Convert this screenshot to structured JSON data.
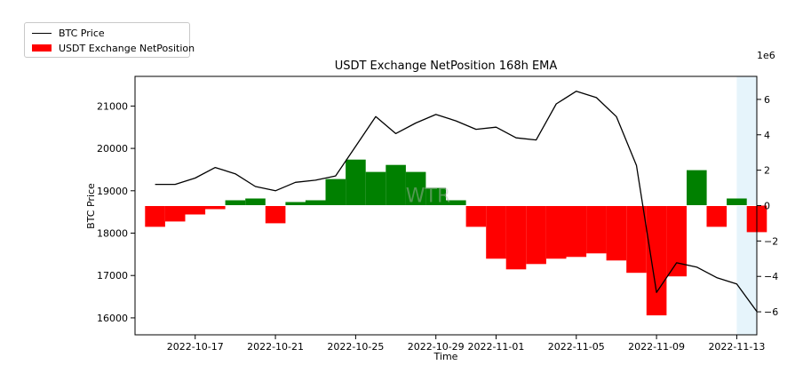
{
  "chart_data": {
    "type": "bar",
    "title": "USDT Exchange NetPosition 168h EMA",
    "xlabel": "Time",
    "ylabel": "BTC Price",
    "right_axis_multiplier": "1e6",
    "watermark": "WTR",
    "legend_placement": "top-left, outside plot",
    "grid": false,
    "x_ticks": [
      "2022-10-17",
      "2022-10-21",
      "2022-10-25",
      "2022-10-29",
      "2022-11-01",
      "2022-11-05",
      "2022-11-09",
      "2022-11-13"
    ],
    "x_range": [
      "2022-10-14",
      "2022-11-14"
    ],
    "left_ylim": [
      15600,
      21700
    ],
    "left_ticks": [
      16000,
      17000,
      18000,
      19000,
      20000,
      21000
    ],
    "right_ylim": [
      -7.3,
      7.3
    ],
    "right_ticks": [
      6,
      4,
      2,
      0,
      -2,
      -4,
      -6
    ],
    "shaded_region": {
      "start": "2022-11-13",
      "end": "2022-11-14",
      "color": "#e6f4fb"
    },
    "colors": {
      "positive": "#008000",
      "negative": "#ff0000",
      "line": "#000000"
    },
    "series": [
      {
        "name": "BTC Price",
        "kind": "line",
        "axis": "left",
        "points": [
          [
            "2022-10-15",
            19150
          ],
          [
            "2022-10-16",
            19150
          ],
          [
            "2022-10-17",
            19300
          ],
          [
            "2022-10-18",
            19550
          ],
          [
            "2022-10-19",
            19400
          ],
          [
            "2022-10-20",
            19100
          ],
          [
            "2022-10-21",
            19000
          ],
          [
            "2022-10-22",
            19200
          ],
          [
            "2022-10-23",
            19250
          ],
          [
            "2022-10-24",
            19350
          ],
          [
            "2022-10-25",
            20050
          ],
          [
            "2022-10-26",
            20750
          ],
          [
            "2022-10-27",
            20350
          ],
          [
            "2022-10-28",
            20600
          ],
          [
            "2022-10-29",
            20800
          ],
          [
            "2022-10-30",
            20650
          ],
          [
            "2022-10-31",
            20450
          ],
          [
            "2022-11-01",
            20500
          ],
          [
            "2022-11-02",
            20250
          ],
          [
            "2022-11-03",
            20200
          ],
          [
            "2022-11-04",
            21050
          ],
          [
            "2022-11-05",
            21350
          ],
          [
            "2022-11-06",
            21200
          ],
          [
            "2022-11-07",
            20750
          ],
          [
            "2022-11-08",
            19600
          ],
          [
            "2022-11-09",
            16600
          ],
          [
            "2022-11-10",
            17300
          ],
          [
            "2022-11-11",
            17200
          ],
          [
            "2022-11-12",
            16950
          ],
          [
            "2022-11-13",
            16800
          ],
          [
            "2022-11-14",
            16150
          ]
        ]
      },
      {
        "name": "USDT Exchange NetPosition",
        "kind": "bar",
        "axis": "right",
        "unit_multiplier": "1e6",
        "points": [
          [
            "2022-10-15",
            -1.2
          ],
          [
            "2022-10-16",
            -0.9
          ],
          [
            "2022-10-17",
            -0.5
          ],
          [
            "2022-10-18",
            -0.2
          ],
          [
            "2022-10-19",
            0.3
          ],
          [
            "2022-10-20",
            0.4
          ],
          [
            "2022-10-21",
            -1.0
          ],
          [
            "2022-10-22",
            0.2
          ],
          [
            "2022-10-23",
            0.3
          ],
          [
            "2022-10-24",
            1.5
          ],
          [
            "2022-10-25",
            2.6
          ],
          [
            "2022-10-26",
            1.9
          ],
          [
            "2022-10-27",
            2.3
          ],
          [
            "2022-10-28",
            1.9
          ],
          [
            "2022-10-29",
            1.0
          ],
          [
            "2022-10-30",
            0.3
          ],
          [
            "2022-10-31",
            -1.2
          ],
          [
            "2022-11-01",
            -3.0
          ],
          [
            "2022-11-02",
            -3.6
          ],
          [
            "2022-11-03",
            -3.3
          ],
          [
            "2022-11-04",
            -3.0
          ],
          [
            "2022-11-05",
            -2.9
          ],
          [
            "2022-11-06",
            -2.7
          ],
          [
            "2022-11-07",
            -3.1
          ],
          [
            "2022-11-08",
            -3.8
          ],
          [
            "2022-11-09",
            -6.2
          ],
          [
            "2022-11-10",
            -4.0
          ],
          [
            "2022-11-11",
            2.0
          ],
          [
            "2022-11-12",
            -1.2
          ],
          [
            "2022-11-13",
            0.4
          ],
          [
            "2022-11-14",
            -1.5
          ]
        ]
      }
    ]
  }
}
